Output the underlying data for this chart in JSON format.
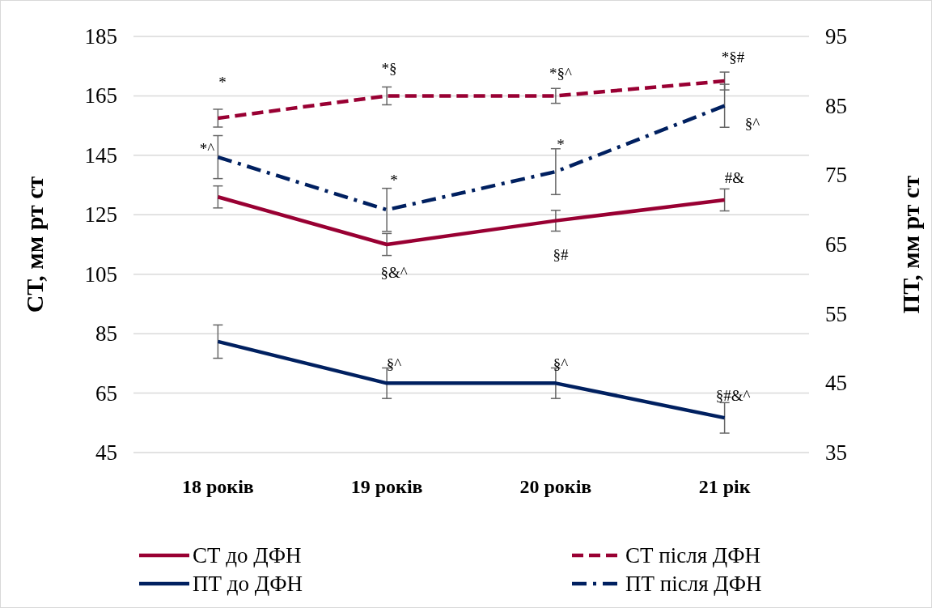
{
  "chart_data": {
    "type": "line",
    "categories": [
      "18 років",
      "19 років",
      "20 років",
      "21 рік"
    ],
    "ylabel": "СТ, мм рт ст",
    "y2label": "ПТ, мм рт ст",
    "ylim": [
      45,
      185
    ],
    "yticks": [
      45,
      65,
      85,
      105,
      125,
      145,
      165,
      185
    ],
    "y2lim": [
      35,
      95
    ],
    "y2ticks": [
      35,
      45,
      55,
      65,
      75,
      85,
      95
    ],
    "grid": "y",
    "legend": "bottom",
    "marker": "none",
    "series": [
      {
        "name": "СТ до ДФН",
        "color": "#990033",
        "line_style": "solid",
        "values": [
          131,
          115,
          123,
          130
        ],
        "errors": [
          3.7,
          3.7,
          3.5,
          3.7
        ]
      },
      {
        "name": "СТ після ДФН",
        "color": "#990033",
        "line_style": "dashed",
        "values": [
          157.5,
          165,
          165,
          170
        ],
        "errors": [
          3,
          3,
          2.5,
          3
        ]
      },
      {
        "name": "ПТ до ДФН",
        "color": "#002060",
        "line_style": "solid",
        "axis": "y2",
        "values": [
          51,
          45,
          45,
          40
        ],
        "errors": [
          2.4,
          2.2,
          2.2,
          2.2
        ]
      },
      {
        "name": "ПТ після ДФН",
        "color": "#002060",
        "line_style": "dashdot",
        "axis": "y2",
        "values": [
          77.6,
          70,
          75.5,
          85
        ],
        "errors": [
          3.1,
          3.1,
          3.3,
          3.1
        ]
      }
    ],
    "annotations": [
      "*",
      "*^",
      "*§",
      "*",
      "§&^",
      "§^",
      "*§^",
      "*",
      "§#",
      "§^",
      "*§#",
      "§^",
      "#&",
      "§#&^"
    ]
  }
}
